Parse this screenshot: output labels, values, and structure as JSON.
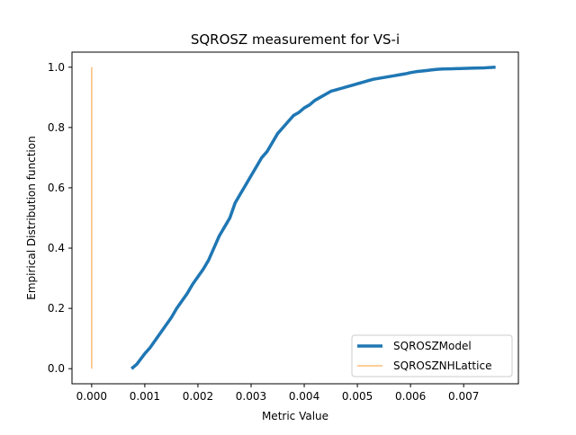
{
  "chart_data": {
    "type": "line",
    "title": "SQROSZ measurement for VS-i",
    "xlabel": "Metric Value",
    "ylabel": "Empirical Distribution function",
    "xlim": [
      -0.00037,
      0.00803
    ],
    "ylim": [
      -0.05,
      1.05
    ],
    "xticks": [
      {
        "value": 0.0,
        "label": "0.000"
      },
      {
        "value": 0.001,
        "label": "0.001"
      },
      {
        "value": 0.002,
        "label": "0.002"
      },
      {
        "value": 0.003,
        "label": "0.003"
      },
      {
        "value": 0.004,
        "label": "0.004"
      },
      {
        "value": 0.005,
        "label": "0.005"
      },
      {
        "value": 0.006,
        "label": "0.006"
      },
      {
        "value": 0.007,
        "label": "0.007"
      }
    ],
    "yticks": [
      {
        "value": 0.0,
        "label": "0.0"
      },
      {
        "value": 0.2,
        "label": "0.2"
      },
      {
        "value": 0.4,
        "label": "0.4"
      },
      {
        "value": 0.6,
        "label": "0.6"
      },
      {
        "value": 0.8,
        "label": "0.8"
      },
      {
        "value": 1.0,
        "label": "1.0"
      }
    ],
    "grid": false,
    "legend_position": "bottom-right",
    "series": [
      {
        "name": "SQROSZModel",
        "color": "#1f77b4",
        "line_width": "thick",
        "x": [
          0.00075,
          0.00085,
          0.001,
          0.0011,
          0.0012,
          0.0013,
          0.0014,
          0.0015,
          0.0016,
          0.0017,
          0.0018,
          0.0019,
          0.002,
          0.0021,
          0.0022,
          0.0023,
          0.0024,
          0.0025,
          0.0026,
          0.0027,
          0.0028,
          0.0029,
          0.003,
          0.0031,
          0.0032,
          0.0033,
          0.0034,
          0.0035,
          0.0036,
          0.0037,
          0.0038,
          0.0039,
          0.004,
          0.0041,
          0.0042,
          0.0043,
          0.0044,
          0.0045,
          0.0046,
          0.0047,
          0.0048,
          0.0049,
          0.005,
          0.0051,
          0.0052,
          0.0053,
          0.0054,
          0.0055,
          0.0056,
          0.0057,
          0.0058,
          0.0059,
          0.006,
          0.0061,
          0.0062,
          0.0063,
          0.0064,
          0.0065,
          0.0066,
          0.0068,
          0.007,
          0.0072,
          0.0074,
          0.0076
        ],
        "y": [
          0.0,
          0.015,
          0.05,
          0.07,
          0.095,
          0.12,
          0.145,
          0.17,
          0.2,
          0.225,
          0.25,
          0.28,
          0.305,
          0.33,
          0.36,
          0.4,
          0.44,
          0.47,
          0.5,
          0.55,
          0.58,
          0.61,
          0.64,
          0.67,
          0.7,
          0.72,
          0.75,
          0.78,
          0.8,
          0.82,
          0.84,
          0.85,
          0.865,
          0.875,
          0.89,
          0.9,
          0.91,
          0.92,
          0.925,
          0.93,
          0.935,
          0.94,
          0.945,
          0.95,
          0.955,
          0.96,
          0.963,
          0.966,
          0.969,
          0.972,
          0.975,
          0.978,
          0.982,
          0.985,
          0.987,
          0.989,
          0.991,
          0.993,
          0.994,
          0.995,
          0.996,
          0.997,
          0.998,
          1.0
        ]
      },
      {
        "name": "SQROSZNHLattice",
        "color": "#ffbb78",
        "line_width": "thin",
        "x": [
          0.0,
          0.0
        ],
        "y": [
          0.0,
          1.0
        ]
      }
    ]
  }
}
